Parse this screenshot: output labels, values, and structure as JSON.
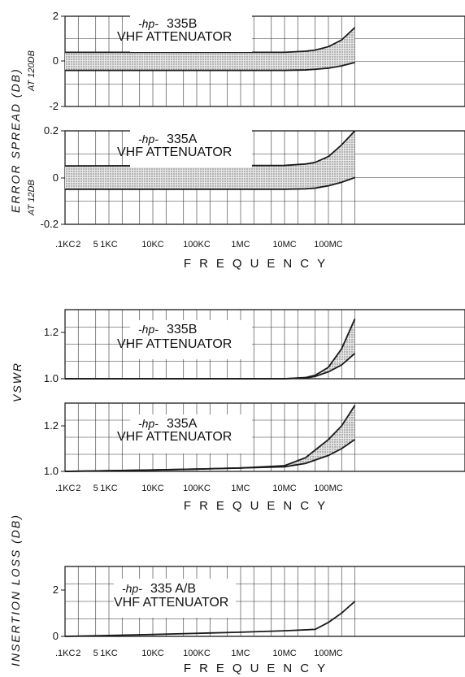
{
  "charts_text": {
    "frequency_title": "FREQUENCY",
    "error_spread_title": "ERROR SPREAD (DB)",
    "at_120db": "AT 120DB",
    "at_12db": "AT 12DB",
    "vswr_title": "VSWR",
    "insertion_loss_title": "INSERTION LOSS (DB)"
  },
  "x_ticks": [
    ".1KC",
    "2",
    "5",
    "1KC",
    "10KC",
    "100KC",
    "1MC",
    "10MC",
    "100MC"
  ],
  "colors": {
    "line": "#1a1a1a",
    "grid": "#333333",
    "fill": "#bdbdbd"
  },
  "chart_data": [
    {
      "type": "area",
      "hp_mark": "-hp-",
      "model": "335B",
      "subtitle": "VHF ATTENUATOR",
      "ylim": [
        -2,
        2
      ],
      "yticks": [
        "2",
        "0",
        "-2"
      ],
      "x_scale": "log",
      "x_unit": "Hz",
      "series": [
        {
          "x": [
            100,
            10000000,
            30000000,
            50000000,
            100000000,
            200000000,
            400000000
          ],
          "values": [
            0.4,
            0.4,
            0.45,
            0.5,
            0.65,
            0.95,
            1.5
          ]
        },
        {
          "x": [
            100,
            10000000,
            30000000,
            50000000,
            100000000,
            200000000,
            400000000
          ],
          "values": [
            -0.4,
            -0.4,
            -0.38,
            -0.35,
            -0.3,
            -0.2,
            -0.05
          ]
        }
      ]
    },
    {
      "type": "area",
      "hp_mark": "-hp-",
      "model": "335A",
      "subtitle": "VHF ATTENUATOR",
      "ylim": [
        -0.2,
        0.2
      ],
      "yticks": [
        "0.2",
        "0",
        "-0.2"
      ],
      "x_scale": "log",
      "x_unit": "Hz",
      "series": [
        {
          "x": [
            100,
            10000000,
            30000000,
            50000000,
            100000000,
            200000000,
            400000000
          ],
          "values": [
            0.05,
            0.052,
            0.058,
            0.065,
            0.09,
            0.14,
            0.2
          ]
        },
        {
          "x": [
            100,
            10000000,
            30000000,
            50000000,
            100000000,
            200000000,
            400000000
          ],
          "values": [
            -0.05,
            -0.05,
            -0.048,
            -0.045,
            -0.035,
            -0.02,
            0.0
          ]
        }
      ]
    },
    {
      "type": "area",
      "hp_mark": "-hp-",
      "model": "335B",
      "subtitle": "VHF ATTENUATOR",
      "ylim": [
        1.0,
        1.3
      ],
      "yticks": [
        "1.2",
        "1.0"
      ],
      "x_scale": "log",
      "x_unit": "Hz",
      "series": [
        {
          "x": [
            100,
            10000000,
            30000000,
            50000000,
            100000000,
            200000000,
            400000000
          ],
          "values": [
            1.0,
            1.0,
            1.005,
            1.015,
            1.05,
            1.13,
            1.26
          ]
        },
        {
          "x": [
            100,
            10000000,
            30000000,
            50000000,
            100000000,
            200000000,
            400000000
          ],
          "values": [
            1.0,
            1.0,
            1.003,
            1.01,
            1.03,
            1.06,
            1.11
          ]
        }
      ]
    },
    {
      "type": "area",
      "hp_mark": "-hp-",
      "model": "335A",
      "subtitle": "VHF ATTENUATOR",
      "ylim": [
        1.0,
        1.3
      ],
      "yticks": [
        "1.2",
        "1.0"
      ],
      "x_scale": "log",
      "x_unit": "Hz",
      "series": [
        {
          "x": [
            100,
            1000,
            10000,
            100000,
            1000000,
            10000000,
            30000000,
            100000000,
            200000000,
            400000000
          ],
          "values": [
            1.0,
            1.003,
            1.006,
            1.01,
            1.015,
            1.025,
            1.06,
            1.14,
            1.2,
            1.29
          ]
        },
        {
          "x": [
            100,
            1000,
            10000,
            100000,
            1000000,
            10000000,
            30000000,
            100000000,
            200000000,
            400000000
          ],
          "values": [
            1.0,
            1.003,
            1.006,
            1.01,
            1.015,
            1.02,
            1.035,
            1.07,
            1.1,
            1.14
          ]
        }
      ]
    },
    {
      "type": "line",
      "hp_mark": "-hp-",
      "model": "335 A/B",
      "subtitle": "VHF ATTENUATOR",
      "ylim": [
        0,
        3
      ],
      "yticks": [
        "2",
        "0"
      ],
      "x_scale": "log",
      "x_unit": "Hz",
      "series": [
        {
          "x": [
            100,
            1000,
            10000,
            100000,
            1000000,
            10000000,
            50000000,
            100000000,
            200000000,
            400000000
          ],
          "values": [
            0.0,
            0.04,
            0.08,
            0.13,
            0.18,
            0.24,
            0.3,
            0.6,
            1.0,
            1.5
          ]
        }
      ]
    }
  ]
}
